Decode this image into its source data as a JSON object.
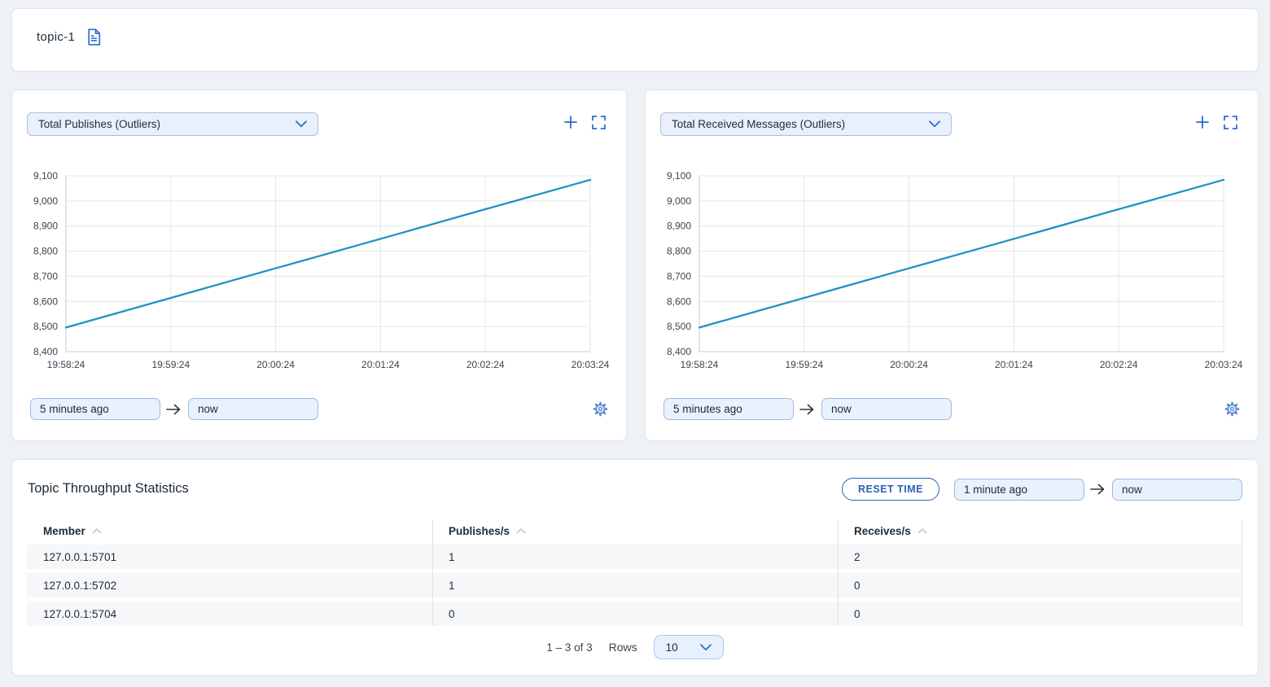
{
  "header": {
    "title": "topic-1"
  },
  "colors": {
    "accent_blue": "#2a6fce",
    "line_blue": "#1e93c6",
    "page_bg": "#eef1f5",
    "input_bg": "#e9f1fc",
    "reset_blue": "#2a62b8"
  },
  "icons": {
    "document": "document-icon",
    "plus": "plus-icon",
    "expand": "fullscreen-icon",
    "gear": "settings-gear-icon",
    "arrow_right": "arrow-right-icon",
    "chevron_down": "chevron-down-icon",
    "sort_up": "sort-chevron-up-icon"
  },
  "charts": [
    {
      "metric_label": "Total Publishes (Outliers)",
      "from_value": "5 minutes ago",
      "to_value": "now"
    },
    {
      "metric_label": "Total Received Messages (Outliers)",
      "from_value": "5 minutes ago",
      "to_value": "now"
    }
  ],
  "chart_data": [
    {
      "type": "line",
      "title": "Total Publishes (Outliers)",
      "x": [
        "19:58:24",
        "19:59:24",
        "20:00:24",
        "20:01:24",
        "20:02:24",
        "20:03:24"
      ],
      "series": [
        {
          "name": "Total Publishes",
          "values": [
            8496,
            8614,
            8732,
            8849,
            8967,
            9084
          ]
        }
      ],
      "ylim": [
        8400,
        9100
      ],
      "yticks": [
        8400,
        8500,
        8600,
        8700,
        8800,
        8900,
        9000,
        9100
      ],
      "grid": true,
      "legend": "none",
      "line_color": "#1e93c6"
    },
    {
      "type": "line",
      "title": "Total Received Messages (Outliers)",
      "x": [
        "19:58:24",
        "19:59:24",
        "20:00:24",
        "20:01:24",
        "20:02:24",
        "20:03:24"
      ],
      "series": [
        {
          "name": "Total Received Messages",
          "values": [
            8496,
            8614,
            8732,
            8849,
            8967,
            9084
          ]
        }
      ],
      "ylim": [
        8400,
        9100
      ],
      "yticks": [
        8400,
        8500,
        8600,
        8700,
        8800,
        8900,
        9000,
        9100
      ],
      "grid": true,
      "legend": "none",
      "line_color": "#1e93c6"
    }
  ],
  "stats": {
    "title": "Topic Throughput Statistics",
    "reset_button": "RESET TIME",
    "from_value": "1 minute ago",
    "to_value": "now",
    "columns": [
      "Member",
      "Publishes/s",
      "Receives/s"
    ],
    "rows": [
      [
        "127.0.0.1:5701",
        "1",
        "2"
      ],
      [
        "127.0.0.1:5702",
        "1",
        "0"
      ],
      [
        "127.0.0.1:5704",
        "0",
        "0"
      ]
    ],
    "pagination": {
      "range": "1 – 3 of 3",
      "rows_label": "Rows",
      "rows_value": "10"
    }
  }
}
